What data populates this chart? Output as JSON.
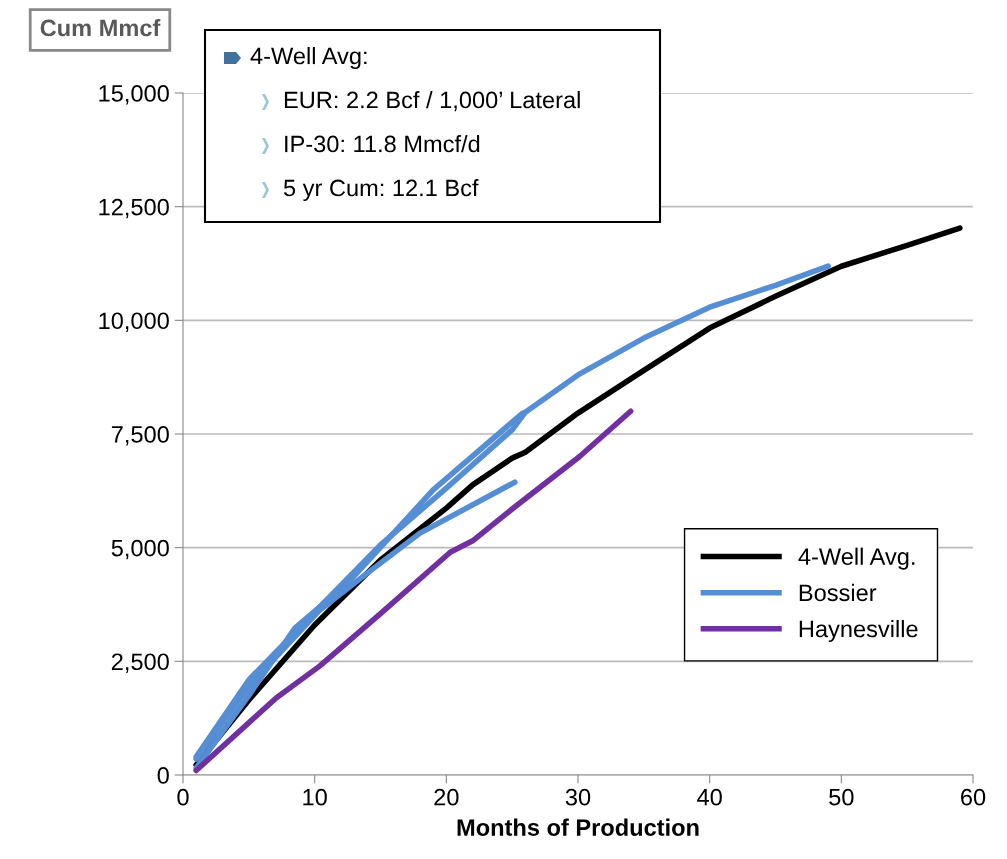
{
  "chart_data": {
    "type": "line",
    "xlabel": "Months of Production",
    "ylabel": "Cum Mmcf",
    "annotations": [
      "4-Well Avg:",
      "EUR: 2.2 Bcf / 1,000’ Lateral",
      "IP-30: 11.8 Mmcf/d",
      "5 yr Cum: 12.1 Bcf"
    ],
    "series": [
      {
        "name": "4-Well Avg.",
        "color": "#000000",
        "x": [
          1,
          5,
          10,
          15,
          20,
          22,
          25,
          26,
          30,
          35,
          40,
          45,
          50,
          55,
          59
        ],
        "values": [
          220,
          1650,
          3300,
          4730,
          5870,
          6380,
          6970,
          7100,
          7960,
          8900,
          9830,
          10530,
          11190,
          11650,
          12030
        ]
      },
      {
        "name": "Bossier",
        "color": "#558ed5",
        "x": [
          1,
          5,
          10,
          15,
          20,
          25,
          26,
          30,
          35,
          40,
          45,
          49
        ],
        "values": [
          400,
          2090,
          3580,
          5060,
          6310,
          7590,
          7980,
          8800,
          9610,
          10290,
          10770,
          11190
        ]
      },
      {
        "color": "#558ed5",
        "x": [
          1,
          5,
          8.5,
          12.5,
          19,
          25.8
        ],
        "values": [
          150,
          1750,
          3230,
          4220,
          6270,
          7960
        ]
      },
      {
        "color": "#558ed5",
        "x": [
          1,
          5,
          10.4,
          14,
          18,
          25.2
        ],
        "values": [
          350,
          1950,
          3630,
          4440,
          5320,
          6440
        ]
      },
      {
        "name": "Haynesville",
        "color": "#7030a0",
        "x": [
          1,
          7.1,
          10.4,
          15,
          20.3,
          22,
          25,
          30.1,
          34
        ],
        "values": [
          100,
          1700,
          2400,
          3550,
          4900,
          5150,
          5850,
          7000,
          8000
        ]
      }
    ],
    "xlim": [
      0,
      60
    ],
    "xticks": [
      0,
      10,
      20,
      30,
      40,
      50,
      60
    ],
    "ylim": [
      0,
      15000
    ],
    "yticks": [
      0,
      {
        "value": 2500,
        "label": "2,500"
      },
      {
        "value": 5000,
        "label": "5,000"
      },
      {
        "value": 7500,
        "label": "7,500"
      },
      {
        "value": 10000,
        "label": "10,000"
      },
      {
        "value": 12500,
        "label": "12,500"
      },
      {
        "value": 15000,
        "label": "15,000"
      }
    ],
    "grid": "y",
    "legend": "bottom right",
    "marker": "none",
    "line_style": "solid"
  }
}
